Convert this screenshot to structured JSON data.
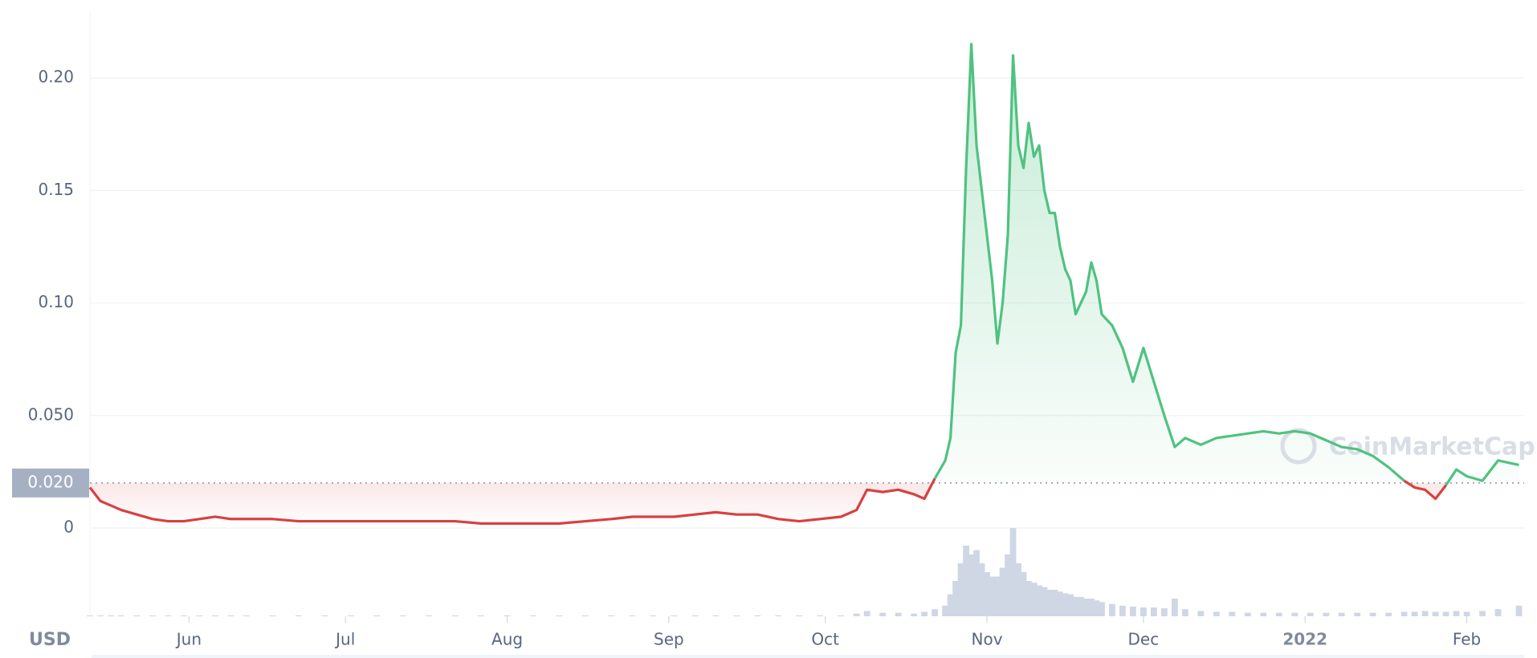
{
  "chart_data": {
    "type": "line",
    "currency": "USD",
    "watermark": "CoinMarketCap",
    "baseline": {
      "value": 0.02,
      "label": "0.020"
    },
    "up_color": "#4fc280",
    "down_color": "#d94040",
    "volume_color": "#cfd6e4",
    "x": [
      0,
      2,
      4,
      6,
      9,
      12,
      15,
      18,
      21,
      24,
      27,
      30,
      35,
      40,
      45,
      50,
      55,
      60,
      65,
      70,
      75,
      80,
      85,
      90,
      95,
      100,
      104,
      108,
      112,
      116,
      120,
      124,
      128,
      132,
      136,
      140,
      144,
      147,
      149,
      152,
      155,
      158,
      160,
      162,
      164,
      165,
      166,
      167,
      168,
      169,
      170,
      171,
      172,
      173,
      174,
      175,
      176,
      177,
      178,
      179,
      180,
      181,
      182,
      183,
      184,
      185,
      186,
      187,
      188,
      189,
      190,
      191,
      192,
      193,
      194,
      196,
      198,
      200,
      202,
      204,
      206,
      208,
      210,
      213,
      216,
      219,
      222,
      225,
      228,
      231,
      234,
      237,
      240,
      243,
      246,
      249,
      252,
      254,
      256,
      258,
      260,
      262,
      264,
      267,
      270,
      274
    ],
    "values": [
      0.018,
      0.012,
      0.01,
      0.008,
      0.006,
      0.004,
      0.003,
      0.003,
      0.004,
      0.005,
      0.004,
      0.004,
      0.004,
      0.003,
      0.003,
      0.003,
      0.003,
      0.003,
      0.003,
      0.003,
      0.002,
      0.002,
      0.002,
      0.002,
      0.003,
      0.004,
      0.005,
      0.005,
      0.005,
      0.006,
      0.007,
      0.006,
      0.006,
      0.004,
      0.003,
      0.004,
      0.005,
      0.008,
      0.017,
      0.016,
      0.017,
      0.015,
      0.013,
      0.022,
      0.03,
      0.04,
      0.078,
      0.09,
      0.16,
      0.215,
      0.17,
      0.15,
      0.13,
      0.11,
      0.082,
      0.1,
      0.13,
      0.21,
      0.17,
      0.16,
      0.18,
      0.165,
      0.17,
      0.15,
      0.14,
      0.14,
      0.125,
      0.115,
      0.11,
      0.095,
      0.1,
      0.105,
      0.118,
      0.11,
      0.095,
      0.09,
      0.08,
      0.065,
      0.08,
      0.065,
      0.05,
      0.036,
      0.04,
      0.037,
      0.04,
      0.041,
      0.042,
      0.043,
      0.042,
      0.043,
      0.042,
      0.039,
      0.036,
      0.035,
      0.032,
      0.027,
      0.021,
      0.018,
      0.017,
      0.013,
      0.019,
      0.026,
      0.023,
      0.021,
      0.03,
      0.028
    ],
    "volume": [
      1,
      1,
      1,
      1,
      1,
      1,
      1,
      1,
      1,
      1,
      1,
      1,
      1,
      1,
      1,
      1,
      1,
      1,
      1,
      1,
      1,
      1,
      1,
      1,
      1,
      1,
      1,
      1,
      1,
      1,
      1,
      1,
      1,
      1,
      1,
      1,
      1,
      3,
      6,
      4,
      4,
      3,
      5,
      8,
      12,
      25,
      40,
      60,
      80,
      70,
      75,
      60,
      50,
      45,
      45,
      55,
      70,
      100,
      60,
      50,
      40,
      38,
      35,
      33,
      30,
      30,
      28,
      26,
      25,
      22,
      22,
      20,
      20,
      18,
      16,
      14,
      12,
      11,
      10,
      10,
      9,
      20,
      8,
      6,
      5,
      5,
      4,
      4,
      4,
      4,
      4,
      4,
      4,
      4,
      4,
      4,
      5,
      5,
      6,
      5,
      5,
      6,
      5,
      6,
      8,
      12
    ],
    "volume_lim": [
      0,
      100
    ],
    "xlim": [
      0,
      275
    ],
    "xticks": [
      {
        "value": 19,
        "label": "Jun"
      },
      {
        "value": 49,
        "label": "Jul"
      },
      {
        "value": 80,
        "label": "Aug"
      },
      {
        "value": 111,
        "label": "Sep"
      },
      {
        "value": 141,
        "label": "Oct"
      },
      {
        "value": 172,
        "label": "Nov"
      },
      {
        "value": 202,
        "label": "Dec"
      },
      {
        "value": 233,
        "label": "2022"
      },
      {
        "value": 264,
        "label": "Feb"
      }
    ],
    "ylim": [
      0,
      0.23
    ],
    "yticks": [
      0,
      {
        "value": 0.05,
        "label": "0.050"
      },
      {
        "value": 0.1,
        "label": "0.10"
      },
      0.15,
      {
        "value": 0.2,
        "label": "0.20"
      }
    ],
    "grid": true
  }
}
